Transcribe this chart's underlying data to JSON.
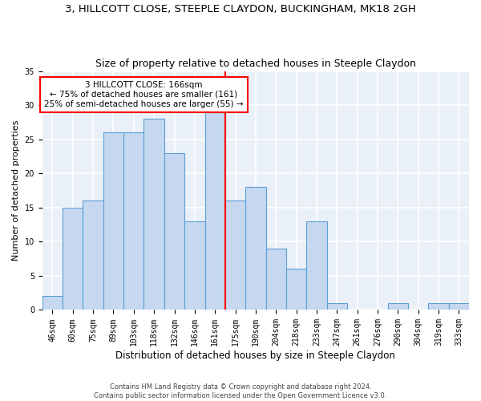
{
  "title": "3, HILLCOTT CLOSE, STEEPLE CLAYDON, BUCKINGHAM, MK18 2GH",
  "subtitle": "Size of property relative to detached houses in Steeple Claydon",
  "xlabel": "Distribution of detached houses by size in Steeple Claydon",
  "ylabel": "Number of detached properties",
  "categories": [
    "46sqm",
    "60sqm",
    "75sqm",
    "89sqm",
    "103sqm",
    "118sqm",
    "132sqm",
    "146sqm",
    "161sqm",
    "175sqm",
    "190sqm",
    "204sqm",
    "218sqm",
    "233sqm",
    "247sqm",
    "261sqm",
    "276sqm",
    "290sqm",
    "304sqm",
    "319sqm",
    "333sqm"
  ],
  "values": [
    2,
    15,
    16,
    26,
    26,
    28,
    23,
    13,
    29,
    16,
    18,
    9,
    6,
    13,
    1,
    0,
    0,
    1,
    0,
    1,
    1
  ],
  "bar_color": "#c5d8f0",
  "bar_edge_color": "#5a9fd4",
  "bar_edge_width": 0.8,
  "vline_index": 8,
  "vline_color": "red",
  "annotation_line1": "3 HILLCOTT CLOSE: 166sqm",
  "annotation_line2": "← 75% of detached houses are smaller (161)",
  "annotation_line3": "25% of semi-detached houses are larger (55) →",
  "annotation_box_color": "white",
  "annotation_box_edge_color": "red",
  "ylim": [
    0,
    35
  ],
  "yticks": [
    0,
    5,
    10,
    15,
    20,
    25,
    30,
    35
  ],
  "background_color": "#eaf0f8",
  "grid_color": "white",
  "title_fontsize": 9.5,
  "subtitle_fontsize": 9,
  "xlabel_fontsize": 8.5,
  "ylabel_fontsize": 8,
  "tick_fontsize": 7,
  "footer_line1": "Contains HM Land Registry data © Crown copyright and database right 2024.",
  "footer_line2": "Contains public sector information licensed under the Open Government Licence v3.0."
}
